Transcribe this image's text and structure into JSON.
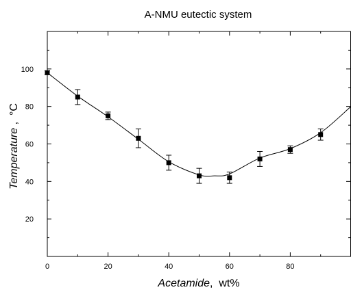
{
  "chart_data": {
    "type": "scatter",
    "title": "A-NMU eutectic system",
    "xlabel": {
      "italic": "Acetamide",
      "unit": ",  wt%"
    },
    "ylabel": {
      "italic": "Temperature",
      "unit": " ,  °C"
    },
    "xlim": [
      0,
      100
    ],
    "ylim": [
      0,
      120
    ],
    "xticks": [
      0,
      20,
      40,
      60,
      80
    ],
    "yticks": [
      20,
      40,
      60,
      80,
      100
    ],
    "grid": false,
    "series": [
      {
        "marker": "square",
        "x": [
          0,
          10,
          20,
          30,
          40,
          50,
          60,
          70,
          80,
          90
        ],
        "y": [
          98,
          85,
          75,
          63,
          50,
          43,
          42,
          52,
          57,
          65
        ],
        "yerr": [
          1,
          4,
          2,
          5,
          4,
          4,
          3,
          4,
          2,
          3
        ]
      }
    ],
    "fit_curve": {
      "x": [
        0,
        10,
        20,
        30,
        40,
        50,
        55,
        60,
        70,
        80,
        90,
        100
      ],
      "y": [
        98,
        85.5,
        74.5,
        62.5,
        50.5,
        43.5,
        43,
        44,
        52.5,
        57.5,
        66,
        80
      ]
    },
    "colors": {
      "axis": "#000000",
      "marker": "#000000",
      "curve": "#000000"
    }
  }
}
